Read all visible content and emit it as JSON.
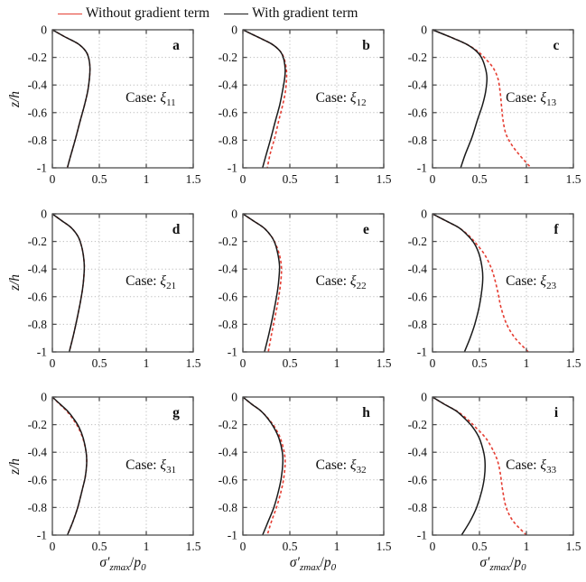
{
  "figure": {
    "background": "#ffffff",
    "box_color": "#4d4d4d",
    "grid_color": "#bfbfbf"
  },
  "chart_data": {
    "type": "line",
    "layout": "3x3 grid of depth profiles",
    "xlabel_parts": {
      "sigma": "σ′",
      "sigma_sub": "zmax",
      "slash": "/",
      "p": "p",
      "p_sub": "0"
    },
    "ylabel": "z/h",
    "xlim": [
      0,
      1.5
    ],
    "ylim": [
      -1,
      0
    ],
    "xticks": [
      "0",
      "0.5",
      "1",
      "1.5"
    ],
    "xtick_values": [
      0,
      0.5,
      1,
      1.5
    ],
    "yticks": [
      "0",
      "-0.2",
      "-0.4",
      "-0.6",
      "-0.8",
      "-1"
    ],
    "ytick_values": [
      0,
      -0.2,
      -0.4,
      -0.6,
      -0.8,
      -1
    ],
    "grid": "dotted, on interior ticks",
    "legend": [
      {
        "label": "Without gradient term",
        "color": "#e53e33",
        "style": "dashed"
      },
      {
        "label": "With gradient term",
        "color": "#1a1a1a",
        "style": "solid"
      }
    ],
    "case_prefix": "Case: ",
    "case_symbol": "ξ",
    "subplots": [
      {
        "letter": "a",
        "case_sub": "11",
        "with_gradient": [
          [
            0,
            0
          ],
          [
            0.13,
            -0.05
          ],
          [
            0.27,
            -0.1
          ],
          [
            0.35,
            -0.15
          ],
          [
            0.385,
            -0.2
          ],
          [
            0.4,
            -0.27
          ],
          [
            0.395,
            -0.35
          ],
          [
            0.375,
            -0.45
          ],
          [
            0.34,
            -0.55
          ],
          [
            0.3,
            -0.65
          ],
          [
            0.25,
            -0.78
          ],
          [
            0.2,
            -0.9
          ],
          [
            0.16,
            -1
          ]
        ],
        "without_gradient": [
          [
            0,
            0
          ],
          [
            0.13,
            -0.05
          ],
          [
            0.27,
            -0.1
          ],
          [
            0.35,
            -0.15
          ],
          [
            0.385,
            -0.2
          ],
          [
            0.4,
            -0.27
          ],
          [
            0.395,
            -0.35
          ],
          [
            0.375,
            -0.45
          ],
          [
            0.34,
            -0.55
          ],
          [
            0.3,
            -0.65
          ],
          [
            0.25,
            -0.78
          ],
          [
            0.2,
            -0.9
          ],
          [
            0.16,
            -1
          ]
        ]
      },
      {
        "letter": "b",
        "case_sub": "12",
        "with_gradient": [
          [
            0,
            0
          ],
          [
            0.15,
            -0.05
          ],
          [
            0.3,
            -0.1
          ],
          [
            0.39,
            -0.15
          ],
          [
            0.43,
            -0.2
          ],
          [
            0.45,
            -0.28
          ],
          [
            0.445,
            -0.35
          ],
          [
            0.42,
            -0.45
          ],
          [
            0.39,
            -0.55
          ],
          [
            0.35,
            -0.65
          ],
          [
            0.3,
            -0.78
          ],
          [
            0.25,
            -0.9
          ],
          [
            0.21,
            -1
          ]
        ],
        "without_gradient": [
          [
            0,
            0
          ],
          [
            0.15,
            -0.05
          ],
          [
            0.3,
            -0.1
          ],
          [
            0.39,
            -0.15
          ],
          [
            0.435,
            -0.2
          ],
          [
            0.462,
            -0.28
          ],
          [
            0.465,
            -0.35
          ],
          [
            0.452,
            -0.45
          ],
          [
            0.422,
            -0.55
          ],
          [
            0.385,
            -0.65
          ],
          [
            0.34,
            -0.78
          ],
          [
            0.29,
            -0.9
          ],
          [
            0.26,
            -1
          ]
        ]
      },
      {
        "letter": "c",
        "case_sub": "13",
        "with_gradient": [
          [
            0,
            0
          ],
          [
            0.18,
            -0.05
          ],
          [
            0.35,
            -0.1
          ],
          [
            0.46,
            -0.15
          ],
          [
            0.52,
            -0.2
          ],
          [
            0.56,
            -0.27
          ],
          [
            0.58,
            -0.35
          ],
          [
            0.565,
            -0.45
          ],
          [
            0.53,
            -0.55
          ],
          [
            0.48,
            -0.65
          ],
          [
            0.42,
            -0.78
          ],
          [
            0.35,
            -0.9
          ],
          [
            0.3,
            -1
          ]
        ],
        "without_gradient": [
          [
            0,
            0
          ],
          [
            0.18,
            -0.05
          ],
          [
            0.35,
            -0.1
          ],
          [
            0.47,
            -0.15
          ],
          [
            0.55,
            -0.2
          ],
          [
            0.64,
            -0.27
          ],
          [
            0.695,
            -0.35
          ],
          [
            0.72,
            -0.45
          ],
          [
            0.735,
            -0.55
          ],
          [
            0.75,
            -0.65
          ],
          [
            0.78,
            -0.75
          ],
          [
            0.84,
            -0.83
          ],
          [
            0.93,
            -0.91
          ],
          [
            1.05,
            -1
          ]
        ]
      },
      {
        "letter": "d",
        "case_sub": "21",
        "with_gradient": [
          [
            0,
            0
          ],
          [
            0.1,
            -0.05
          ],
          [
            0.2,
            -0.1
          ],
          [
            0.27,
            -0.16
          ],
          [
            0.305,
            -0.22
          ],
          [
            0.33,
            -0.3
          ],
          [
            0.34,
            -0.38
          ],
          [
            0.335,
            -0.46
          ],
          [
            0.32,
            -0.55
          ],
          [
            0.295,
            -0.65
          ],
          [
            0.26,
            -0.77
          ],
          [
            0.22,
            -0.89
          ],
          [
            0.18,
            -1
          ]
        ],
        "without_gradient": [
          [
            0,
            0
          ],
          [
            0.1,
            -0.05
          ],
          [
            0.2,
            -0.1
          ],
          [
            0.27,
            -0.16
          ],
          [
            0.305,
            -0.22
          ],
          [
            0.33,
            -0.3
          ],
          [
            0.34,
            -0.38
          ],
          [
            0.335,
            -0.46
          ],
          [
            0.32,
            -0.55
          ],
          [
            0.295,
            -0.65
          ],
          [
            0.26,
            -0.77
          ],
          [
            0.22,
            -0.89
          ],
          [
            0.18,
            -1
          ]
        ]
      },
      {
        "letter": "e",
        "case_sub": "22",
        "with_gradient": [
          [
            0,
            0
          ],
          [
            0.11,
            -0.05
          ],
          [
            0.22,
            -0.1
          ],
          [
            0.3,
            -0.16
          ],
          [
            0.345,
            -0.22
          ],
          [
            0.375,
            -0.3
          ],
          [
            0.39,
            -0.38
          ],
          [
            0.385,
            -0.46
          ],
          [
            0.37,
            -0.55
          ],
          [
            0.345,
            -0.65
          ],
          [
            0.31,
            -0.77
          ],
          [
            0.27,
            -0.89
          ],
          [
            0.23,
            -1
          ]
        ],
        "without_gradient": [
          [
            0,
            0
          ],
          [
            0.11,
            -0.05
          ],
          [
            0.22,
            -0.1
          ],
          [
            0.3,
            -0.16
          ],
          [
            0.35,
            -0.22
          ],
          [
            0.39,
            -0.3
          ],
          [
            0.41,
            -0.38
          ],
          [
            0.408,
            -0.46
          ],
          [
            0.393,
            -0.55
          ],
          [
            0.37,
            -0.65
          ],
          [
            0.335,
            -0.77
          ],
          [
            0.3,
            -0.89
          ],
          [
            0.27,
            -1
          ]
        ]
      },
      {
        "letter": "f",
        "case_sub": "23",
        "with_gradient": [
          [
            0,
            0
          ],
          [
            0.14,
            -0.05
          ],
          [
            0.28,
            -0.1
          ],
          [
            0.38,
            -0.16
          ],
          [
            0.45,
            -0.22
          ],
          [
            0.5,
            -0.3
          ],
          [
            0.53,
            -0.4
          ],
          [
            0.535,
            -0.48
          ],
          [
            0.52,
            -0.58
          ],
          [
            0.495,
            -0.68
          ],
          [
            0.45,
            -0.8
          ],
          [
            0.4,
            -0.9
          ],
          [
            0.34,
            -1
          ]
        ],
        "without_gradient": [
          [
            0,
            0
          ],
          [
            0.14,
            -0.05
          ],
          [
            0.28,
            -0.1
          ],
          [
            0.39,
            -0.16
          ],
          [
            0.47,
            -0.22
          ],
          [
            0.56,
            -0.3
          ],
          [
            0.63,
            -0.4
          ],
          [
            0.665,
            -0.48
          ],
          [
            0.7,
            -0.58
          ],
          [
            0.73,
            -0.68
          ],
          [
            0.79,
            -0.8
          ],
          [
            0.88,
            -0.9
          ],
          [
            1.02,
            -1
          ]
        ]
      },
      {
        "letter": "g",
        "case_sub": "31",
        "with_gradient": [
          [
            0,
            0
          ],
          [
            0.08,
            -0.05
          ],
          [
            0.16,
            -0.1
          ],
          [
            0.23,
            -0.16
          ],
          [
            0.285,
            -0.22
          ],
          [
            0.33,
            -0.3
          ],
          [
            0.36,
            -0.4
          ],
          [
            0.365,
            -0.48
          ],
          [
            0.35,
            -0.58
          ],
          [
            0.315,
            -0.68
          ],
          [
            0.27,
            -0.8
          ],
          [
            0.22,
            -0.9
          ],
          [
            0.16,
            -1
          ]
        ],
        "without_gradient": [
          [
            0,
            0
          ],
          [
            0.075,
            -0.05
          ],
          [
            0.15,
            -0.1
          ],
          [
            0.22,
            -0.16
          ],
          [
            0.275,
            -0.22
          ],
          [
            0.325,
            -0.3
          ],
          [
            0.36,
            -0.4
          ],
          [
            0.365,
            -0.48
          ],
          [
            0.35,
            -0.58
          ],
          [
            0.315,
            -0.68
          ],
          [
            0.27,
            -0.8
          ],
          [
            0.22,
            -0.9
          ],
          [
            0.16,
            -1
          ]
        ]
      },
      {
        "letter": "h",
        "case_sub": "32",
        "with_gradient": [
          [
            0,
            0
          ],
          [
            0.09,
            -0.05
          ],
          [
            0.19,
            -0.1
          ],
          [
            0.27,
            -0.16
          ],
          [
            0.33,
            -0.22
          ],
          [
            0.385,
            -0.3
          ],
          [
            0.42,
            -0.4
          ],
          [
            0.425,
            -0.48
          ],
          [
            0.41,
            -0.58
          ],
          [
            0.38,
            -0.68
          ],
          [
            0.33,
            -0.8
          ],
          [
            0.27,
            -0.9
          ],
          [
            0.21,
            -1
          ]
        ],
        "without_gradient": [
          [
            0,
            0
          ],
          [
            0.09,
            -0.05
          ],
          [
            0.19,
            -0.1
          ],
          [
            0.275,
            -0.16
          ],
          [
            0.34,
            -0.22
          ],
          [
            0.4,
            -0.3
          ],
          [
            0.44,
            -0.4
          ],
          [
            0.45,
            -0.48
          ],
          [
            0.437,
            -0.58
          ],
          [
            0.408,
            -0.68
          ],
          [
            0.358,
            -0.8
          ],
          [
            0.305,
            -0.9
          ],
          [
            0.26,
            -1
          ]
        ]
      },
      {
        "letter": "i",
        "case_sub": "33",
        "with_gradient": [
          [
            0,
            0
          ],
          [
            0.12,
            -0.05
          ],
          [
            0.25,
            -0.1
          ],
          [
            0.35,
            -0.16
          ],
          [
            0.43,
            -0.22
          ],
          [
            0.5,
            -0.3
          ],
          [
            0.545,
            -0.4
          ],
          [
            0.56,
            -0.48
          ],
          [
            0.553,
            -0.58
          ],
          [
            0.525,
            -0.68
          ],
          [
            0.47,
            -0.8
          ],
          [
            0.4,
            -0.9
          ],
          [
            0.31,
            -1
          ]
        ],
        "without_gradient": [
          [
            0,
            0
          ],
          [
            0.12,
            -0.05
          ],
          [
            0.255,
            -0.1
          ],
          [
            0.37,
            -0.16
          ],
          [
            0.46,
            -0.22
          ],
          [
            0.57,
            -0.3
          ],
          [
            0.655,
            -0.4
          ],
          [
            0.7,
            -0.48
          ],
          [
            0.728,
            -0.58
          ],
          [
            0.748,
            -0.68
          ],
          [
            0.785,
            -0.8
          ],
          [
            0.86,
            -0.9
          ],
          [
            1.0,
            -1
          ]
        ]
      }
    ]
  }
}
